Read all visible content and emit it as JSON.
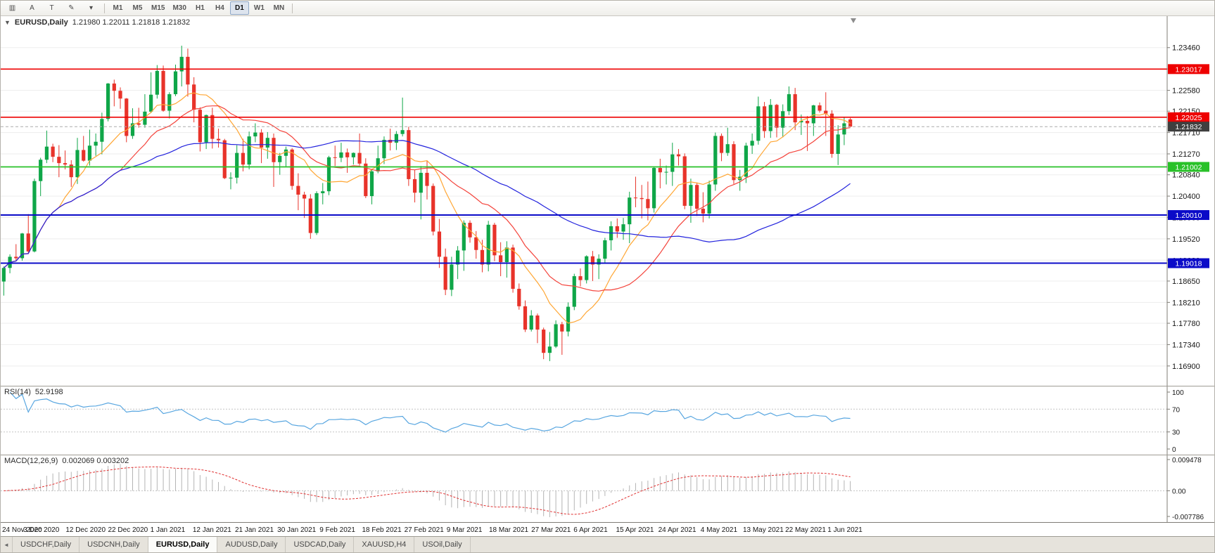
{
  "toolbar": {
    "icon_buttons": [
      {
        "name": "chart-type-icon",
        "glyph": "▥"
      },
      {
        "name": "cursor-a-icon",
        "glyph": "A"
      },
      {
        "name": "crosshair-t-icon",
        "glyph": "T"
      },
      {
        "name": "drawing-tools-icon",
        "glyph": "✎"
      },
      {
        "name": "drawing-tools-dropdown-icon",
        "glyph": "▾"
      }
    ],
    "timeframes": [
      "M1",
      "M5",
      "M15",
      "M30",
      "H1",
      "H4",
      "D1",
      "W1",
      "MN"
    ],
    "active_timeframe": "D1"
  },
  "header": {
    "collapse_glyph": "▼",
    "symbol": "EURUSD,Daily",
    "ohlc": "1.21980 1.22011 1.21818 1.21832"
  },
  "price_axis": {
    "labels": [
      "1.23460",
      "1.23020",
      "1.22580",
      "1.22150",
      "1.21710",
      "1.21270",
      "1.20840",
      "1.20400",
      "1.19960",
      "1.19520",
      "1.19080",
      "1.18650",
      "1.18210",
      "1.17780",
      "1.17340",
      "1.16900"
    ]
  },
  "hlines": [
    {
      "price": 1.23017,
      "label": "1.23017",
      "color": "#EE0000",
      "width": 1.6
    },
    {
      "price": 1.22025,
      "label": "1.22025",
      "color": "#EE0000",
      "width": 1.6
    },
    {
      "price": 1.21002,
      "label": "1.21002",
      "color": "#28C128",
      "width": 1.8
    },
    {
      "price": 1.2001,
      "label": "1.20010",
      "color": "#0B0BC8",
      "width": 2
    },
    {
      "price": 1.19018,
      "label": "1.19018",
      "color": "#0B0BC8",
      "width": 2
    }
  ],
  "bid": {
    "price": 1.21832,
    "label": "1.21832",
    "badge_color": "#3F3F3F",
    "line_color": "#ABABAB"
  },
  "chart_data": {
    "type": "candlestick",
    "symbol": "EURUSD",
    "timeframe": "Daily",
    "up_color": "#0FA648",
    "down_color": "#E8332A",
    "overlays": [
      {
        "name": "ma-fast-line",
        "type": "sma",
        "period": 10,
        "color": "#FFA633"
      },
      {
        "name": "ma-mid-line",
        "type": "sma",
        "period": 20,
        "color": "#F4433B"
      },
      {
        "name": "ma-slow-line",
        "type": "sma",
        "period": 50,
        "color": "#2222DD"
      }
    ],
    "dates": [
      "24 Nov 2020",
      "3 Dec 2020",
      "12 Dec 2020",
      "22 Dec 2020",
      "1 Jan 2021",
      "12 Jan 2021",
      "21 Jan 2021",
      "30 Jan 2021",
      "9 Feb 2021",
      "18 Feb 2021",
      "27 Feb 2021",
      "9 Mar 2021",
      "18 Mar 2021",
      "27 Mar 2021",
      "6 Apr 2021",
      "15 Apr 2021",
      "24 Apr 2021",
      "4 May 2021",
      "13 May 2021",
      "22 May 2021",
      "1 Jun 2021"
    ],
    "candles": [
      [
        1.1864,
        1.1895,
        1.1835,
        1.1892
      ],
      [
        1.1892,
        1.192,
        1.1881,
        1.1915
      ],
      [
        1.1915,
        1.1941,
        1.1906,
        1.1912
      ],
      [
        1.1912,
        1.1964,
        1.1907,
        1.1963
      ],
      [
        1.1963,
        1.2003,
        1.1923,
        1.1926
      ],
      [
        1.1926,
        1.2076,
        1.1924,
        1.2071
      ],
      [
        1.2071,
        1.2119,
        1.204,
        1.2115
      ],
      [
        1.2115,
        1.2175,
        1.2108,
        1.2142
      ],
      [
        1.2142,
        1.2148,
        1.211,
        1.2121
      ],
      [
        1.2121,
        1.2145,
        1.2079,
        1.2108
      ],
      [
        1.2108,
        1.2134,
        1.2095,
        1.2105
      ],
      [
        1.2105,
        1.2114,
        1.2059,
        1.2079
      ],
      [
        1.2079,
        1.216,
        1.2065,
        1.2135
      ],
      [
        1.2135,
        1.2164,
        1.2111,
        1.2113
      ],
      [
        1.2113,
        1.2177,
        1.2103,
        1.2144
      ],
      [
        1.2144,
        1.2169,
        1.2123,
        1.2152
      ],
      [
        1.2152,
        1.2212,
        1.2126,
        1.2199
      ],
      [
        1.2199,
        1.2273,
        1.2194,
        1.2272
      ],
      [
        1.2272,
        1.228,
        1.2225,
        1.2257
      ],
      [
        1.2257,
        1.2264,
        1.222,
        1.2241
      ],
      [
        1.2241,
        1.2242,
        1.2151,
        1.2164
      ],
      [
        1.2164,
        1.2221,
        1.2158,
        1.219
      ],
      [
        1.219,
        1.2222,
        1.2181,
        1.2187
      ],
      [
        1.2187,
        1.225,
        1.2181,
        1.2214
      ],
      [
        1.2214,
        1.2295,
        1.2211,
        1.2249
      ],
      [
        1.2249,
        1.231,
        1.2241,
        1.2298
      ],
      [
        1.2298,
        1.2309,
        1.2214,
        1.2216
      ],
      [
        1.2216,
        1.2254,
        1.22,
        1.225
      ],
      [
        1.225,
        1.2311,
        1.2246,
        1.2297
      ],
      [
        1.2297,
        1.235,
        1.2266,
        1.2327
      ],
      [
        1.2327,
        1.2344,
        1.2245,
        1.227
      ],
      [
        1.227,
        1.2285,
        1.2192,
        1.2218
      ],
      [
        1.2218,
        1.2223,
        1.2132,
        1.2151
      ],
      [
        1.2151,
        1.2208,
        1.2137,
        1.2207
      ],
      [
        1.2207,
        1.2222,
        1.2138,
        1.2158
      ],
      [
        1.2158,
        1.2179,
        1.214,
        1.2155
      ],
      [
        1.2155,
        1.2158,
        1.2075,
        1.2077
      ],
      [
        1.2077,
        1.2089,
        1.2054,
        1.2078
      ],
      [
        1.2078,
        1.2145,
        1.2066,
        1.2129
      ],
      [
        1.2129,
        1.2158,
        1.2091,
        1.2105
      ],
      [
        1.2105,
        1.2173,
        1.2095,
        1.2163
      ],
      [
        1.2163,
        1.219,
        1.2151,
        1.2171
      ],
      [
        1.2171,
        1.2178,
        1.2108,
        1.214
      ],
      [
        1.214,
        1.2172,
        1.2117,
        1.216
      ],
      [
        1.216,
        1.2169,
        1.2059,
        1.211
      ],
      [
        1.211,
        1.2129,
        1.2084,
        1.2123
      ],
      [
        1.2123,
        1.2142,
        1.21,
        1.2136
      ],
      [
        1.2136,
        1.2139,
        1.2053,
        1.2061
      ],
      [
        1.2061,
        1.2087,
        1.2011,
        1.2043
      ],
      [
        1.2043,
        1.2049,
        1.1995,
        1.2035
      ],
      [
        1.2035,
        1.2044,
        1.1952,
        1.1964
      ],
      [
        1.1964,
        1.205,
        1.196,
        1.2046
      ],
      [
        1.2046,
        1.2067,
        1.2023,
        1.205
      ],
      [
        1.205,
        1.2123,
        1.2042,
        1.212
      ],
      [
        1.212,
        1.2144,
        1.2102,
        1.2119
      ],
      [
        1.2119,
        1.215,
        1.211,
        1.213
      ],
      [
        1.213,
        1.2138,
        1.2088,
        1.212
      ],
      [
        1.212,
        1.213,
        1.2105,
        1.2129
      ],
      [
        1.2129,
        1.2169,
        1.2103,
        1.2107
      ],
      [
        1.2107,
        1.2118,
        1.2036,
        1.204
      ],
      [
        1.204,
        1.2095,
        1.2023,
        1.2091
      ],
      [
        1.2091,
        1.2144,
        1.2087,
        1.2118
      ],
      [
        1.2118,
        1.2163,
        1.2106,
        1.2156
      ],
      [
        1.2156,
        1.2179,
        1.2134,
        1.215
      ],
      [
        1.215,
        1.2174,
        1.2135,
        1.2168
      ],
      [
        1.2168,
        1.2243,
        1.2163,
        1.2176
      ],
      [
        1.2176,
        1.2183,
        1.2061,
        1.2075
      ],
      [
        1.2075,
        1.2094,
        1.2027,
        1.2047
      ],
      [
        1.2047,
        1.2102,
        1.1992,
        1.2088
      ],
      [
        1.2088,
        1.2113,
        1.2033,
        1.2061
      ],
      [
        1.2061,
        1.2066,
        1.1959,
        1.1967
      ],
      [
        1.1967,
        1.1993,
        1.1892,
        1.1915
      ],
      [
        1.1915,
        1.1932,
        1.1836,
        1.1847
      ],
      [
        1.1847,
        1.1915,
        1.1834,
        1.1899
      ],
      [
        1.1899,
        1.1937,
        1.1869,
        1.1928
      ],
      [
        1.1928,
        1.199,
        1.1886,
        1.1985
      ],
      [
        1.1985,
        1.199,
        1.1944,
        1.1955
      ],
      [
        1.1955,
        1.1968,
        1.1911,
        1.1929
      ],
      [
        1.1929,
        1.195,
        1.1883,
        1.1899
      ],
      [
        1.1899,
        1.1989,
        1.1885,
        1.1981
      ],
      [
        1.1981,
        1.1985,
        1.1906,
        1.1918
      ],
      [
        1.1918,
        1.1945,
        1.1875,
        1.1904
      ],
      [
        1.1904,
        1.1947,
        1.1872,
        1.1934
      ],
      [
        1.1934,
        1.194,
        1.1841,
        1.1849
      ],
      [
        1.1849,
        1.186,
        1.1806,
        1.1813
      ],
      [
        1.1813,
        1.1825,
        1.176,
        1.1765
      ],
      [
        1.1765,
        1.1805,
        1.1761,
        1.1794
      ],
      [
        1.1794,
        1.1798,
        1.1737,
        1.1765
      ],
      [
        1.1765,
        1.1769,
        1.1704,
        1.1717
      ],
      [
        1.1717,
        1.176,
        1.17,
        1.173
      ],
      [
        1.173,
        1.1784,
        1.1727,
        1.1776
      ],
      [
        1.1776,
        1.1781,
        1.1713,
        1.1761
      ],
      [
        1.1761,
        1.1821,
        1.1751,
        1.1812
      ],
      [
        1.1812,
        1.188,
        1.1805,
        1.1875
      ],
      [
        1.1875,
        1.1891,
        1.1854,
        1.1867
      ],
      [
        1.1867,
        1.1918,
        1.186,
        1.1916
      ],
      [
        1.1916,
        1.1927,
        1.1865,
        1.1899
      ],
      [
        1.1899,
        1.192,
        1.1869,
        1.1911
      ],
      [
        1.1911,
        1.1954,
        1.1901,
        1.1949
      ],
      [
        1.1949,
        1.1988,
        1.1928,
        1.1978
      ],
      [
        1.1978,
        1.1994,
        1.1954,
        1.1967
      ],
      [
        1.1967,
        1.1995,
        1.195,
        1.1982
      ],
      [
        1.1982,
        1.2049,
        1.1943,
        1.2037
      ],
      [
        1.2037,
        1.208,
        1.2017,
        1.2036
      ],
      [
        1.2036,
        1.2063,
        1.1994,
        1.2034
      ],
      [
        1.2034,
        1.207,
        1.199,
        1.2015
      ],
      [
        1.2015,
        1.21,
        1.2006,
        1.2098
      ],
      [
        1.2098,
        1.2117,
        1.2056,
        1.2089
      ],
      [
        1.2089,
        1.2103,
        1.2064,
        1.209
      ],
      [
        1.209,
        1.215,
        1.2061,
        1.2126
      ],
      [
        1.2126,
        1.2137,
        1.2103,
        1.2122
      ],
      [
        1.2122,
        1.2128,
        1.2013,
        1.202
      ],
      [
        1.202,
        1.2076,
        1.1985,
        1.2063
      ],
      [
        1.2063,
        1.2068,
        1.1999,
        1.2014
      ],
      [
        1.2014,
        1.2048,
        1.1986,
        1.2004
      ],
      [
        1.2004,
        1.2072,
        1.1994,
        1.2064
      ],
      [
        1.2064,
        1.2171,
        1.2051,
        1.2164
      ],
      [
        1.2164,
        1.2169,
        1.2112,
        1.2129
      ],
      [
        1.2129,
        1.2181,
        1.2123,
        1.2147
      ],
      [
        1.2147,
        1.2153,
        1.2065,
        1.2073
      ],
      [
        1.2073,
        1.2094,
        1.2051,
        1.208
      ],
      [
        1.208,
        1.215,
        1.2067,
        1.2144
      ],
      [
        1.2144,
        1.2169,
        1.2127,
        1.2154
      ],
      [
        1.2154,
        1.2245,
        1.2146,
        1.2225
      ],
      [
        1.2225,
        1.2234,
        1.216,
        1.2174
      ],
      [
        1.2174,
        1.224,
        1.216,
        1.2228
      ],
      [
        1.2228,
        1.223,
        1.2161,
        1.2181
      ],
      [
        1.2181,
        1.2229,
        1.2161,
        1.2215
      ],
      [
        1.2215,
        1.2266,
        1.2207,
        1.225
      ],
      [
        1.225,
        1.2263,
        1.2176,
        1.2192
      ],
      [
        1.2192,
        1.2208,
        1.2166,
        1.2195
      ],
      [
        1.2195,
        1.2205,
        1.2133,
        1.219
      ],
      [
        1.219,
        1.2228,
        1.2164,
        1.2227
      ],
      [
        1.2227,
        1.2233,
        1.2212,
        1.2216
      ],
      [
        1.2216,
        1.2254,
        1.2164,
        1.221
      ],
      [
        1.221,
        1.2217,
        1.2119,
        1.2127
      ],
      [
        1.2127,
        1.2186,
        1.2104,
        1.2167
      ],
      [
        1.2167,
        1.2202,
        1.2145,
        1.219
      ],
      [
        1.2198,
        1.22011,
        1.21818,
        1.21832
      ]
    ]
  },
  "rsi_panel": {
    "label": "RSI(14)",
    "value": "52.9198",
    "period": 14,
    "line_color": "#58A6E0",
    "axis_labels": [
      "100",
      "70",
      "30",
      "0"
    ],
    "levels": [
      70,
      30
    ]
  },
  "macd_panel": {
    "label": "MACD(12,26,9)",
    "values": "0.002069 0.003202",
    "fast": 12,
    "slow": 26,
    "signal": 9,
    "hist_color": "#B4B4B4",
    "signal_color": "#E03030",
    "axis_labels": [
      "0.009478",
      "0.00",
      "-0.007786"
    ],
    "axis_max": 0.009478,
    "axis_min": -0.007786
  },
  "tab_bar": {
    "scroll_left_glyph": "◄",
    "tabs": [
      {
        "label": "USDCHF,Daily",
        "active": false
      },
      {
        "label": "USDCNH,Daily",
        "active": false
      },
      {
        "label": "EURUSD,Daily",
        "active": true
      },
      {
        "label": "AUDUSD,Daily",
        "active": false
      },
      {
        "label": "USDCAD,Daily",
        "active": false
      },
      {
        "label": "XAUUSD,H4",
        "active": false
      },
      {
        "label": "USOil,Daily",
        "active": false
      }
    ]
  }
}
